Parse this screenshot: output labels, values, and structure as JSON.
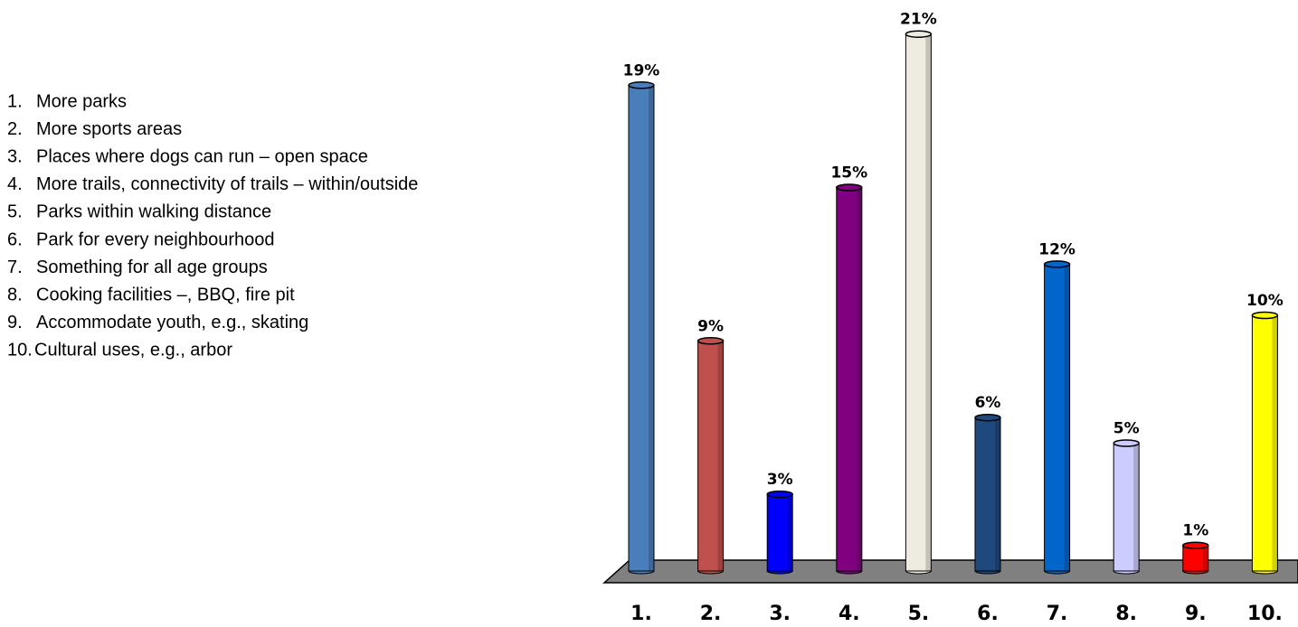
{
  "chart_data": {
    "type": "bar",
    "categories": [
      "1.",
      "2.",
      "3.",
      "4.",
      "5.",
      "6.",
      "7.",
      "8.",
      "9.",
      "10."
    ],
    "values": [
      19,
      9,
      3,
      15,
      21,
      6,
      12,
      5,
      1,
      10
    ],
    "value_labels": [
      "19%",
      "9%",
      "3%",
      "15%",
      "21%",
      "6%",
      "12%",
      "5%",
      "1%",
      "10%"
    ],
    "colors": [
      "#4a7ebb",
      "#c0504d",
      "#0000ff",
      "#800080",
      "#eeece1",
      "#1f497d",
      "#0066cc",
      "#ccccff",
      "#ff0000",
      "#ffff00"
    ],
    "descriptions": [
      "More parks",
      "More sports areas",
      "Places where dogs can run – open space",
      "More trails, connectivity of trails – within/outside",
      "Parks within walking distance",
      "Park for every neighbourhood",
      "Something for all age groups",
      "Cooking facilities –, BBQ, fire pit",
      "Accommodate youth, e.g., skating",
      "Cultural uses, e.g., arbor"
    ]
  }
}
